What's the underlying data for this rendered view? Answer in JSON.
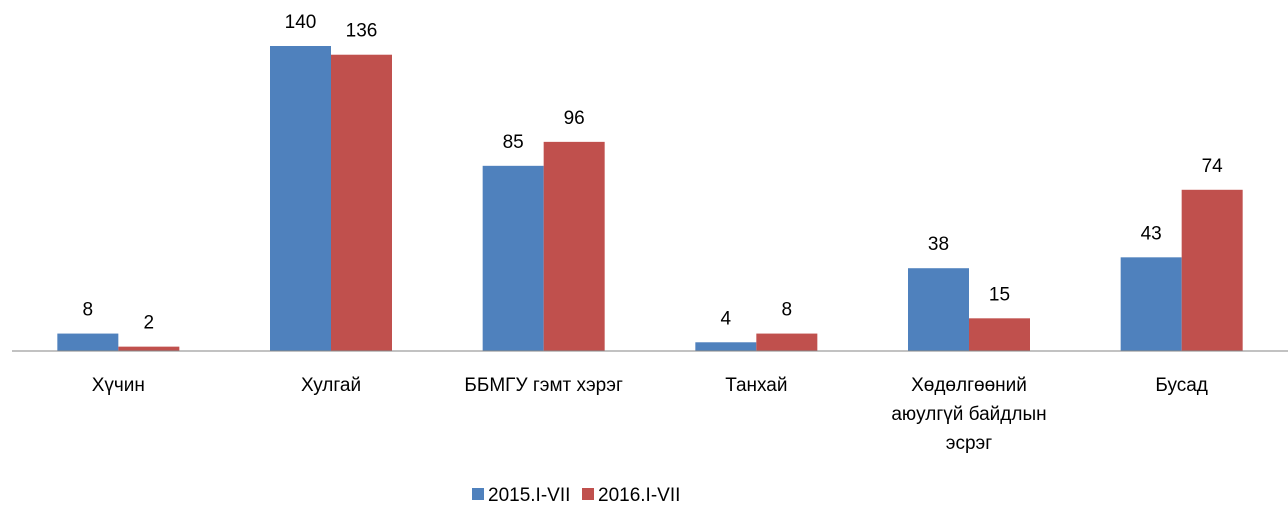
{
  "chart_data": {
    "type": "bar",
    "categories": [
      "Хүчин",
      "Хулгай",
      "ББМГУ гэмт хэрэг",
      "Танхай",
      "Хөдөлгөөний аюулгүй байдлын эсрэг",
      "Бусад"
    ],
    "series": [
      {
        "name": "2015.I-VII",
        "color": "#4f81bd",
        "values": [
          8,
          140,
          85,
          4,
          38,
          43
        ]
      },
      {
        "name": "2016.I-VII",
        "color": "#c0504d",
        "values": [
          2,
          136,
          96,
          8,
          15,
          74
        ]
      }
    ],
    "ylim": [
      0,
      140
    ],
    "legend": "bottom"
  }
}
